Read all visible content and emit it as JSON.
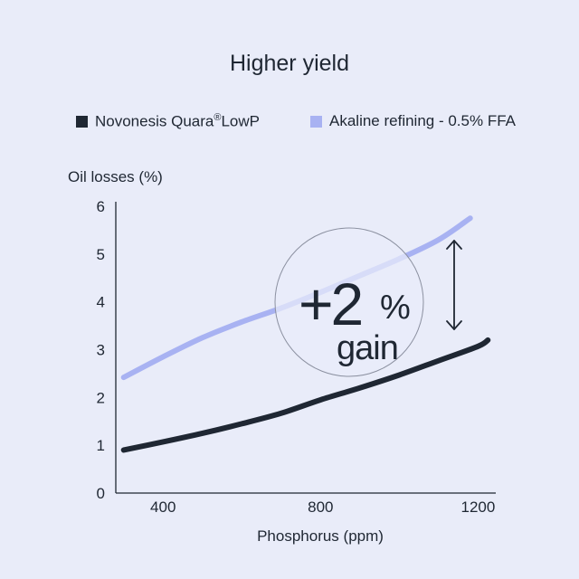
{
  "chart_data": {
    "type": "line",
    "title": "Higher yield",
    "ylabel": "Oil losses (%)",
    "xlabel": "Phosphorus (ppm)",
    "xlim": [
      280,
      1245
    ],
    "ylim": [
      0,
      6
    ],
    "x_ticks": [
      400,
      800,
      1200
    ],
    "y_ticks": [
      0,
      1,
      2,
      3,
      4,
      5,
      6
    ],
    "legend_position": "top",
    "series": [
      {
        "name": "Novonesis Quara®LowP",
        "color": "#1f2733",
        "x": [
          300,
          400,
          500,
          600,
          700,
          800,
          900,
          1000,
          1100,
          1200,
          1225
        ],
        "y": [
          0.9,
          1.07,
          1.25,
          1.45,
          1.67,
          1.95,
          2.2,
          2.47,
          2.77,
          3.07,
          3.2
        ]
      },
      {
        "name": "Akaline refining - 0.5% FFA",
        "color": "#a8b2f2",
        "x": [
          300,
          400,
          500,
          600,
          700,
          800,
          900,
          1000,
          1100,
          1180
        ],
        "y": [
          2.42,
          2.85,
          3.25,
          3.58,
          3.87,
          4.2,
          4.55,
          4.9,
          5.3,
          5.75
        ]
      }
    ],
    "annotation": {
      "big_text": "+2",
      "unit": "%",
      "sub_text": "gain"
    }
  }
}
